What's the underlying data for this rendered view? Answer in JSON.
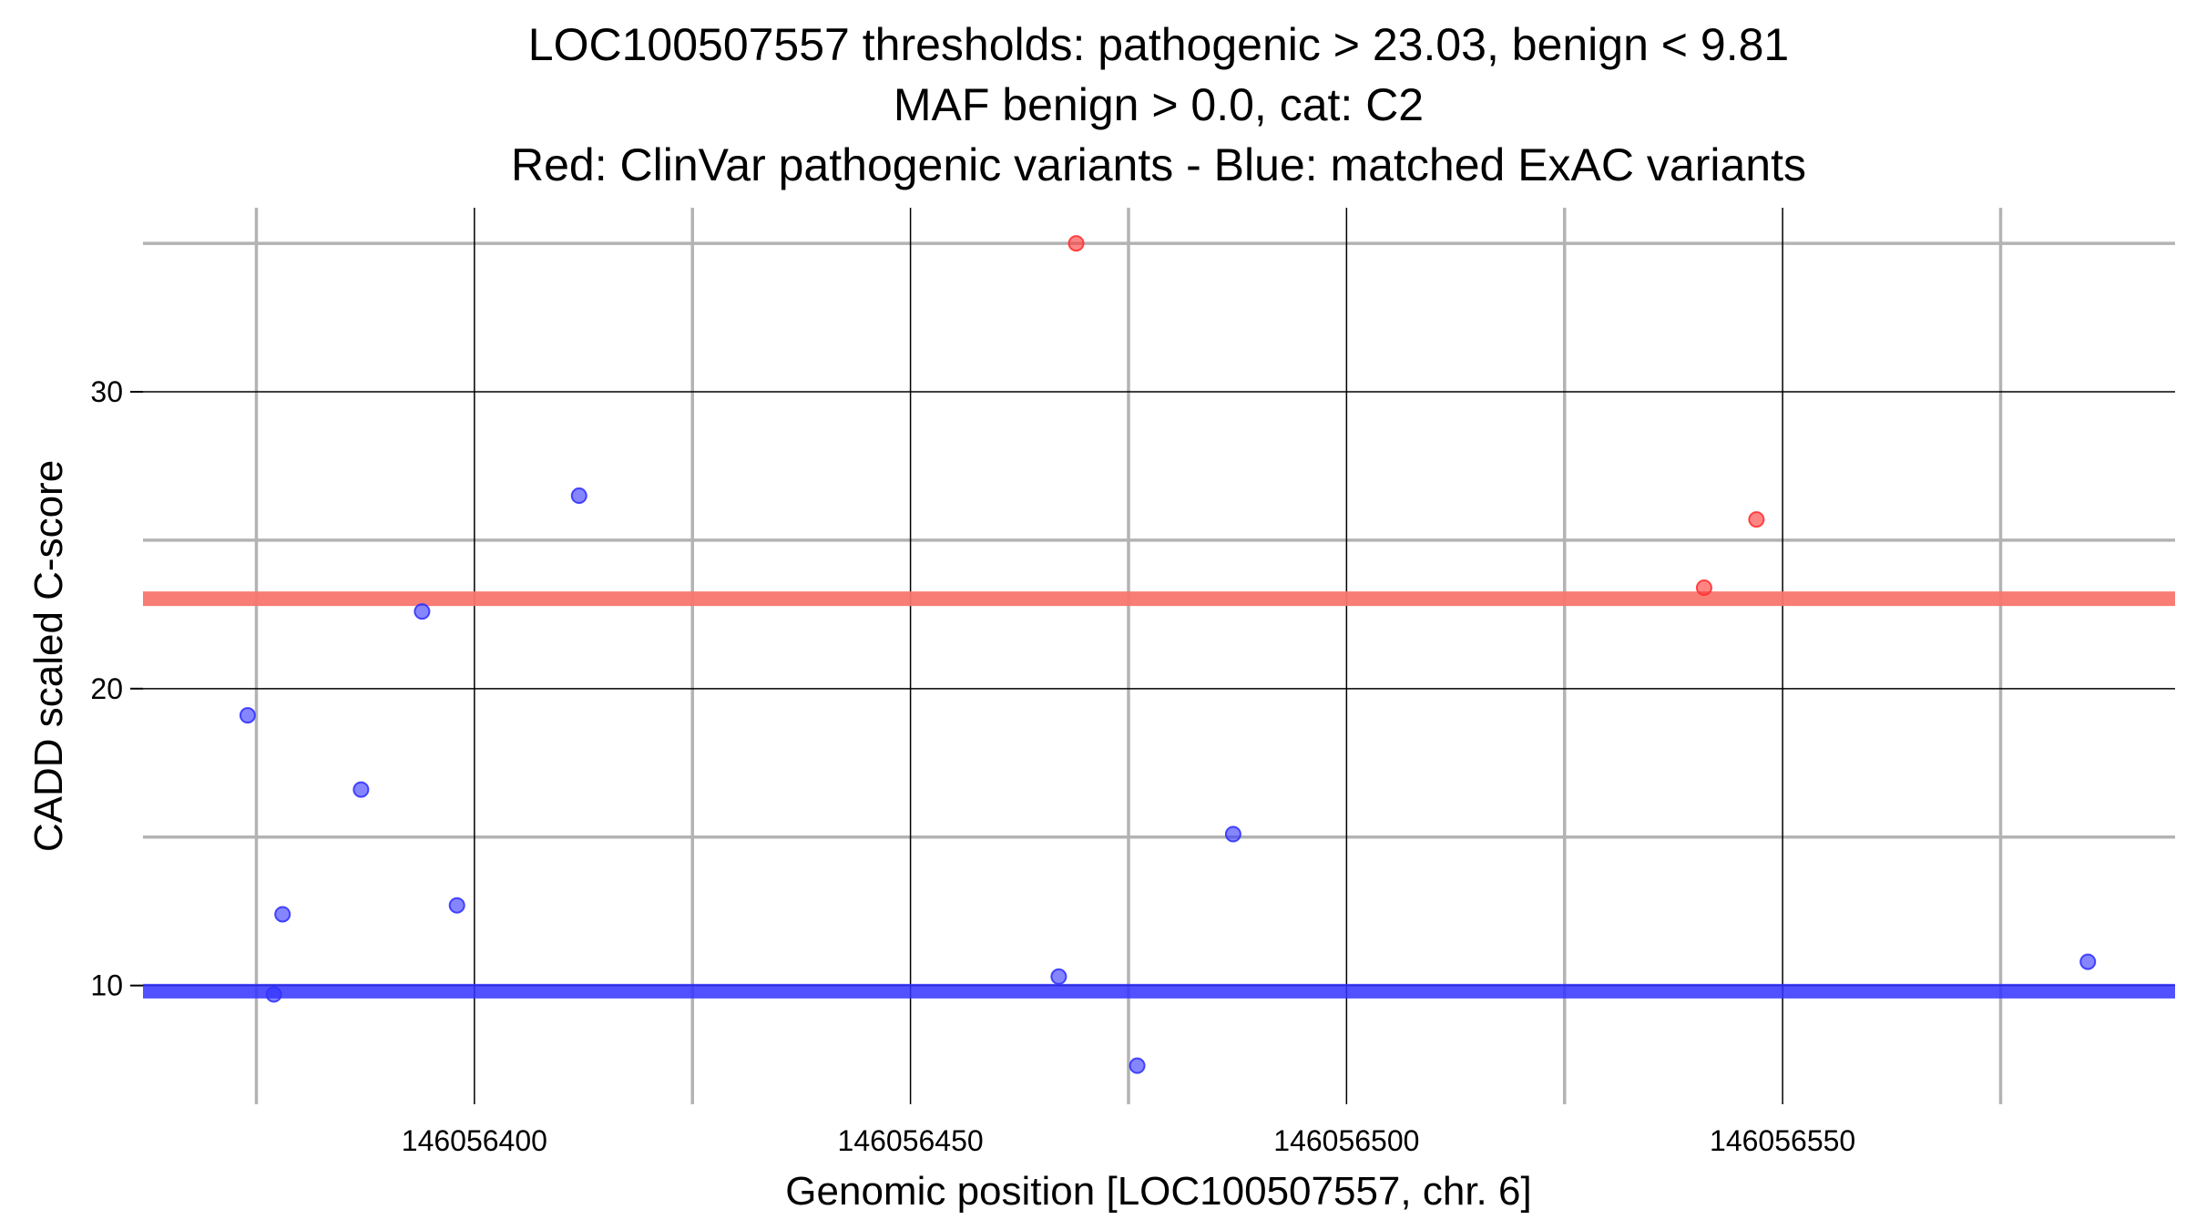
{
  "chart_data": {
    "type": "scatter",
    "title_lines": [
      "LOC100507557 thresholds: pathogenic > 23.03, benign < 9.81",
      "MAF benign > 0.0, cat: C2",
      "Red: ClinVar pathogenic variants - Blue: matched ExAC variants"
    ],
    "xlabel": "Genomic position [LOC100507557, chr. 6]",
    "ylabel": "CADD scaled C-score",
    "xlim": [
      146056362,
      146056595
    ],
    "ylim": [
      6.0,
      36.2
    ],
    "x_major_ticks": [
      146056400,
      146056450,
      146056500,
      146056550
    ],
    "x_tick_labels": [
      "146056400",
      "146056450",
      "146056500",
      "146056550"
    ],
    "x_minor_ticks": [
      146056375,
      146056425,
      146056475,
      146056525,
      146056575
    ],
    "y_major_ticks": [
      10,
      20,
      30
    ],
    "y_tick_labels": [
      "10",
      "20",
      "30"
    ],
    "y_minor_ticks": [
      15,
      25,
      35
    ],
    "thresholds": {
      "pathogenic": {
        "value": 23.03,
        "color": "#f8766d"
      },
      "benign": {
        "value": 9.81,
        "color": "#3333ff"
      }
    },
    "series": [
      {
        "name": "ClinVar pathogenic variants",
        "color": "#ff3333",
        "points": [
          {
            "x": 146056469,
            "y": 35.0
          },
          {
            "x": 146056541,
            "y": 23.4
          },
          {
            "x": 146056547,
            "y": 25.7
          }
        ]
      },
      {
        "name": "matched ExAC variants",
        "color": "#3333ff",
        "points": [
          {
            "x": 146056374,
            "y": 19.1
          },
          {
            "x": 146056377,
            "y": 9.7
          },
          {
            "x": 146056378,
            "y": 12.4
          },
          {
            "x": 146056387,
            "y": 16.6
          },
          {
            "x": 146056394,
            "y": 22.6
          },
          {
            "x": 146056398,
            "y": 12.7
          },
          {
            "x": 146056412,
            "y": 26.5
          },
          {
            "x": 146056467,
            "y": 10.3
          },
          {
            "x": 146056476,
            "y": 7.3
          },
          {
            "x": 146056487,
            "y": 15.1
          },
          {
            "x": 146056585,
            "y": 10.8
          }
        ]
      }
    ]
  }
}
